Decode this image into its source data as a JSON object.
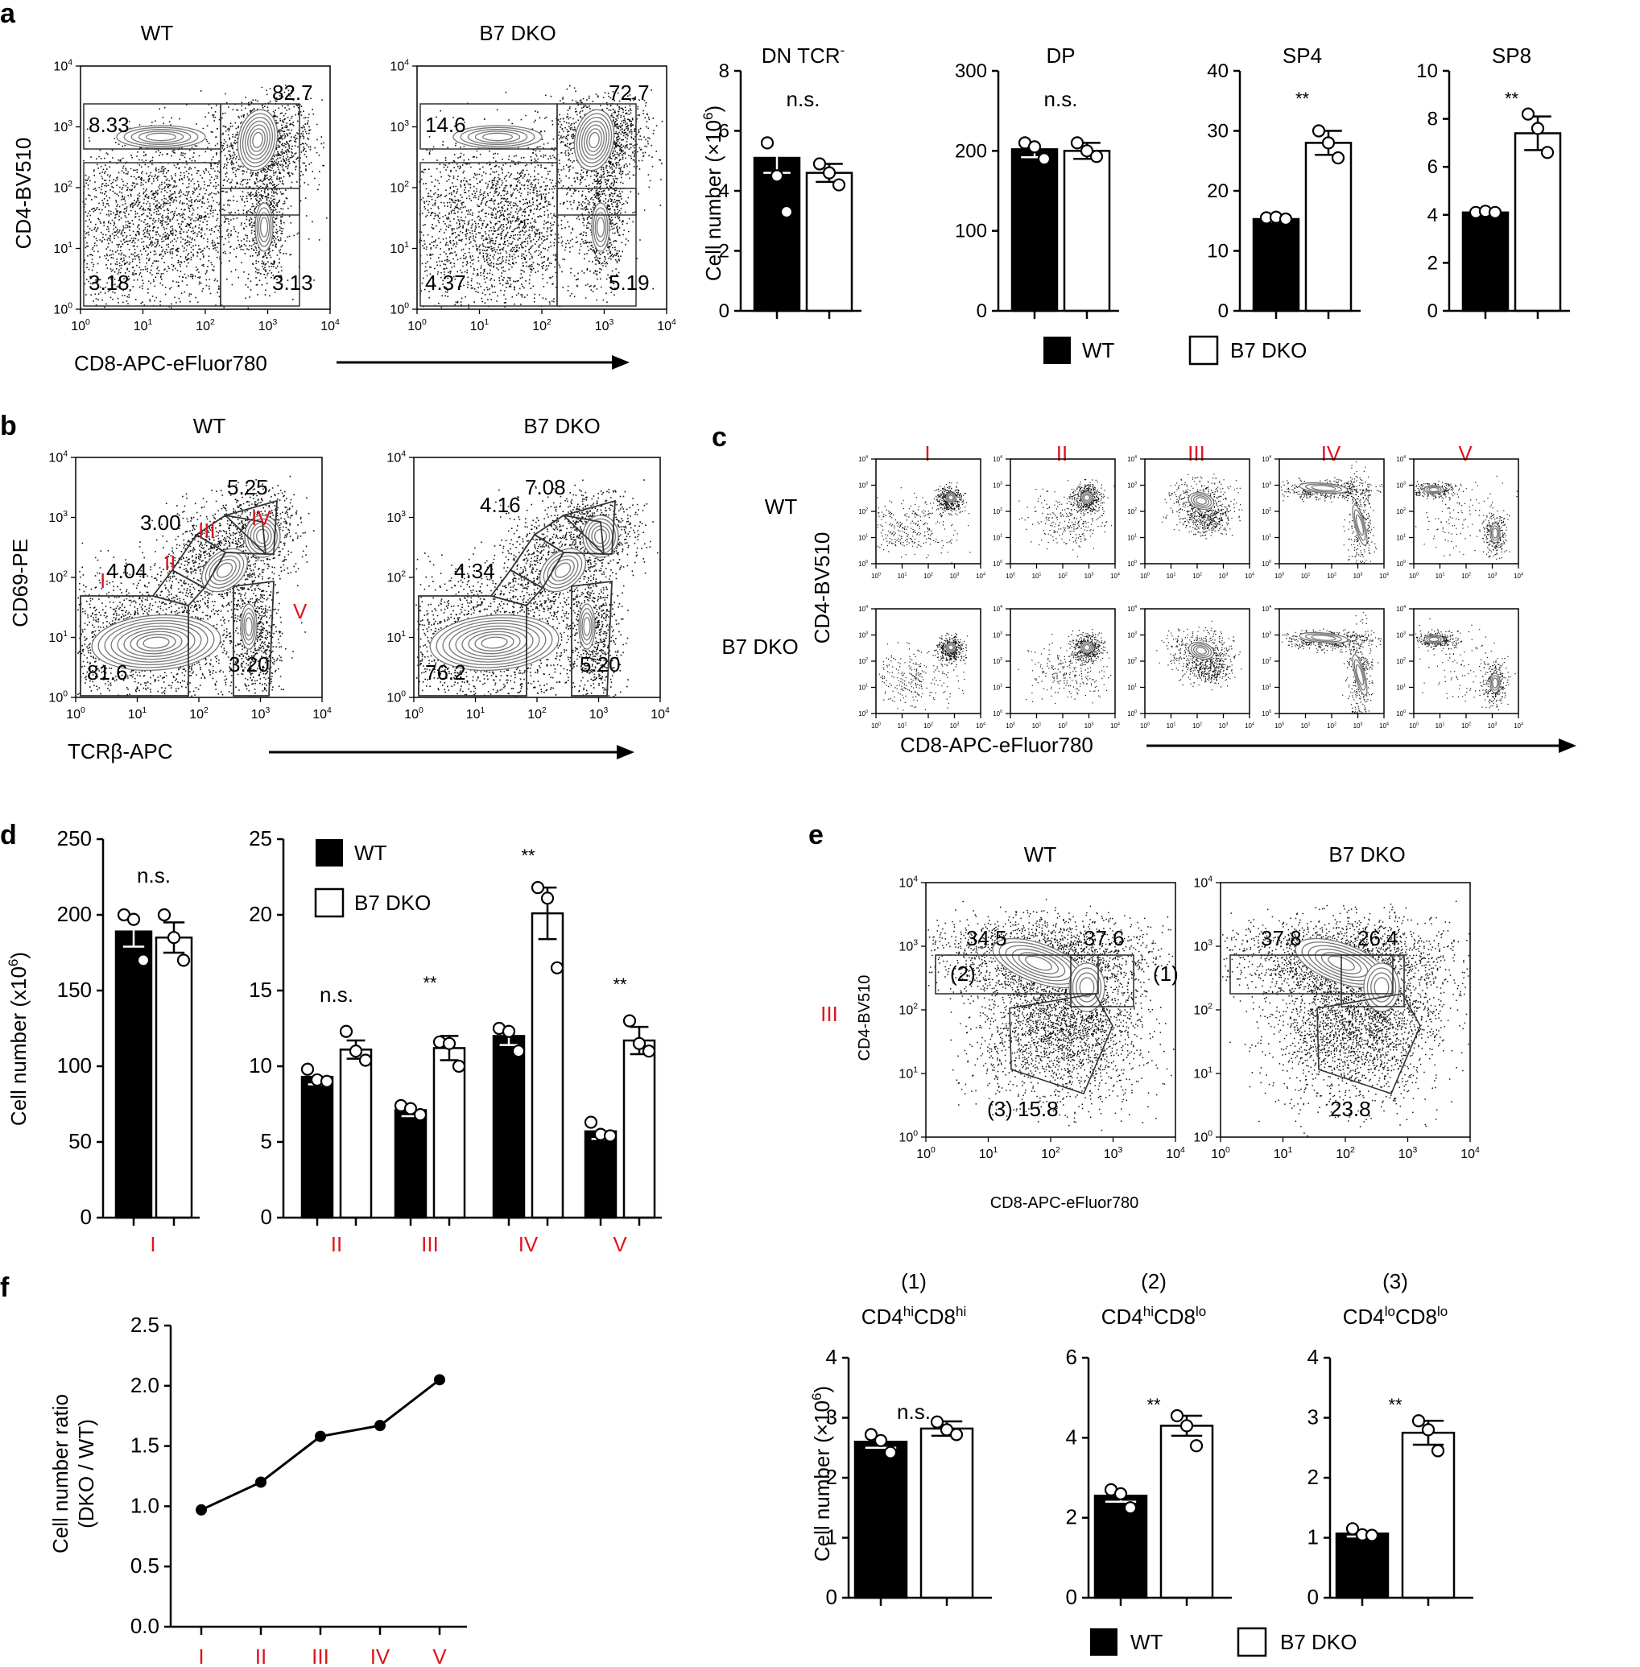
{
  "figure": {
    "panel_labels": [
      "a",
      "b",
      "c",
      "d",
      "e",
      "f"
    ],
    "legend": {
      "wt": "WT",
      "dko": "B7 DKO"
    },
    "axis_labels": {
      "cd4": "CD4-BV510",
      "cd8": "CD8-APC-eFluor780",
      "cd69": "CD69-PE",
      "tcrb": "TCRβ-APC",
      "cell_number": "Cell number (×10",
      "cell_number_d": "Cell number (x10",
      "exp6": "6",
      "cell_number_close": ")",
      "ratio_line1": "Cell number ratio",
      "ratio_line2": "(DKO / WT)"
    },
    "flow_ticks": {
      "base": "10",
      "exponents": [
        "0",
        "1",
        "2",
        "3",
        "4"
      ]
    },
    "stages": [
      "I",
      "II",
      "III",
      "IV",
      "V"
    ]
  },
  "chart_data": [
    {
      "id": "a-flow",
      "type": "flow-cytometry",
      "xlabel": "CD8-APC-eFluor780",
      "ylabel": "CD4-BV510",
      "plots": [
        {
          "title": "WT",
          "gates": [
            "8.33",
            "82.7",
            "3.18",
            "3.13"
          ]
        },
        {
          "title": "B7 DKO",
          "gates": [
            "14.6",
            "72.7",
            "4.37",
            "5.19"
          ]
        }
      ]
    },
    {
      "id": "a-bars",
      "type": "bar",
      "ylabel": "Cell number (×10^6)",
      "groups": [
        "WT",
        "B7 DKO"
      ],
      "panels": [
        {
          "title": "DN TCR",
          "title_sup": "-",
          "ylim": [
            0,
            8
          ],
          "ticks": [
            "0",
            "2",
            "4",
            "6",
            "8"
          ],
          "values": [
            5.1,
            4.6
          ],
          "errors": [
            0.5,
            0.3
          ],
          "points": [
            [
              5.6,
              4.5,
              3.3
            ],
            [
              4.9,
              4.6,
              4.2
            ]
          ],
          "significance": "n.s."
        },
        {
          "title": "DP",
          "ylim": [
            0,
            300
          ],
          "ticks": [
            "0",
            "100",
            "200",
            "300"
          ],
          "values": [
            202,
            200
          ],
          "errors": [
            10,
            10
          ],
          "points": [
            [
              210,
              205,
              190
            ],
            [
              210,
              200,
              193
            ]
          ],
          "significance": "n.s."
        },
        {
          "title": "SP4",
          "ylim": [
            0,
            40
          ],
          "ticks": [
            "0",
            "10",
            "20",
            "30",
            "40"
          ],
          "values": [
            15.3,
            28
          ],
          "errors": [
            0.4,
            2
          ],
          "points": [
            [
              15.5,
              15.6,
              15.3
            ],
            [
              30,
              28,
              25.5
            ]
          ],
          "significance": "**"
        },
        {
          "title": "SP8",
          "ylim": [
            0,
            10
          ],
          "ticks": [
            "0",
            "2",
            "4",
            "6",
            "8",
            "10"
          ],
          "values": [
            4.1,
            7.4
          ],
          "errors": [
            0.05,
            0.7
          ],
          "points": [
            [
              4.1,
              4.15,
              4.1
            ],
            [
              8.2,
              7.6,
              6.6
            ]
          ],
          "significance": "**"
        }
      ]
    },
    {
      "id": "b-flow",
      "type": "flow-cytometry",
      "xlabel": "TCRβ-APC",
      "ylabel": "CD69-PE",
      "gate_labels": [
        "I",
        "II",
        "III",
        "IV",
        "V"
      ],
      "plots": [
        {
          "title": "WT",
          "gates": [
            "4.04",
            "3.00",
            "5.25",
            "81.6",
            "3.20"
          ]
        },
        {
          "title": "B7 DKO",
          "gates": [
            "4.34",
            "4.16",
            "7.08",
            "76.2",
            "5.20"
          ]
        }
      ]
    },
    {
      "id": "c-flow",
      "type": "flow-cytometry",
      "xlabel": "CD8-APC-eFluor780",
      "ylabel": "CD4-BV510",
      "columns": [
        "I",
        "II",
        "III",
        "IV",
        "V"
      ],
      "rows": [
        "WT",
        "B7 DKO"
      ]
    },
    {
      "id": "d-left",
      "type": "bar",
      "ylabel": "Cell number (x10^6)",
      "categories": [
        "I"
      ],
      "ylim": [
        0,
        250
      ],
      "ticks": [
        "0",
        "50",
        "100",
        "150",
        "200",
        "250"
      ],
      "series": [
        {
          "name": "WT",
          "values": [
            189
          ],
          "errors": [
            10
          ],
          "points": [
            [
              200,
              197,
              170
            ]
          ]
        },
        {
          "name": "B7 DKO",
          "values": [
            185
          ],
          "errors": [
            10
          ],
          "points": [
            [
              200,
              185,
              170
            ]
          ]
        }
      ],
      "significance": [
        "n.s."
      ]
    },
    {
      "id": "d-right",
      "type": "bar",
      "categories": [
        "II",
        "III",
        "IV",
        "V"
      ],
      "ylim": [
        0,
        25
      ],
      "ticks": [
        "0",
        "5",
        "10",
        "15",
        "20",
        "25"
      ],
      "series": [
        {
          "name": "WT",
          "values": [
            9.3,
            7.1,
            12,
            5.7
          ],
          "errors": [
            0.5,
            0.4,
            0.6,
            0.5
          ],
          "points": [
            [
              9.8,
              9.1,
              9.0
            ],
            [
              7.4,
              7.2,
              6.8
            ],
            [
              12.5,
              12.3,
              11.0
            ],
            [
              6.3,
              5.5,
              5.4
            ]
          ]
        },
        {
          "name": "B7 DKO",
          "values": [
            11.1,
            11.2,
            20.1,
            11.7
          ],
          "errors": [
            0.6,
            0.8,
            1.7,
            0.9
          ],
          "points": [
            [
              12.3,
              11.0,
              10.4
            ],
            [
              11.6,
              11.5,
              10.0
            ],
            [
              21.8,
              21.1,
              16.5
            ],
            [
              13.0,
              11.5,
              11.0
            ]
          ]
        }
      ],
      "significance": [
        "n.s.",
        "**",
        "**",
        "**"
      ]
    },
    {
      "id": "e-flow",
      "type": "flow-cytometry",
      "xlabel": "CD8-APC-eFluor780",
      "ylabel": "CD4-BV510",
      "row_label": "III",
      "gate_ids": [
        "(1)",
        "(2)",
        "(3)"
      ],
      "plots": [
        {
          "title": "WT",
          "gates": [
            "34.5",
            "37.6",
            "15.8"
          ]
        },
        {
          "title": "B7 DKO",
          "gates": [
            "37.8",
            "26.4",
            "23.8"
          ]
        }
      ]
    },
    {
      "id": "e-bars",
      "type": "bar",
      "ylabel": "Cell number (×10^6)",
      "groups": [
        "WT",
        "B7 DKO"
      ],
      "panels": [
        {
          "num": "(1)",
          "label": [
            "CD4",
            "hi",
            "CD8",
            "hi"
          ],
          "ylim": [
            0,
            4
          ],
          "ticks": [
            "0",
            "1",
            "2",
            "3",
            "4"
          ],
          "values": [
            2.6,
            2.82
          ],
          "errors": [
            0.1,
            0.12
          ],
          "points": [
            [
              2.72,
              2.62,
              2.42
            ],
            [
              2.93,
              2.8,
              2.72
            ]
          ],
          "significance": "n.s."
        },
        {
          "num": "(2)",
          "label": [
            "CD4",
            "hi",
            "CD8",
            "lo"
          ],
          "ylim": [
            0,
            6
          ],
          "ticks": [
            "0",
            "2",
            "4",
            "6"
          ],
          "values": [
            2.55,
            4.3
          ],
          "errors": [
            0.15,
            0.25
          ],
          "points": [
            [
              2.7,
              2.6,
              2.25
            ],
            [
              4.55,
              4.3,
              3.8
            ]
          ],
          "significance": "**"
        },
        {
          "num": "(3)",
          "label": [
            "CD4",
            "lo",
            "CD8",
            "lo"
          ],
          "ylim": [
            0,
            4
          ],
          "ticks": [
            "0",
            "1",
            "2",
            "3",
            "4"
          ],
          "values": [
            1.07,
            2.75
          ],
          "errors": [
            0.05,
            0.2
          ],
          "points": [
            [
              1.15,
              1.05,
              1.04
            ],
            [
              2.95,
              2.8,
              2.45
            ]
          ],
          "significance": "**"
        }
      ]
    },
    {
      "id": "f-line",
      "type": "line",
      "categories": [
        "I",
        "II",
        "III",
        "IV",
        "V"
      ],
      "values": [
        0.97,
        1.2,
        1.58,
        1.67,
        2.05
      ],
      "ylim": [
        0,
        2.5
      ],
      "ticks": [
        "0.0",
        "0.5",
        "1.0",
        "1.5",
        "2.0",
        "2.5"
      ],
      "ylabel": "Cell number ratio (DKO / WT)"
    }
  ]
}
